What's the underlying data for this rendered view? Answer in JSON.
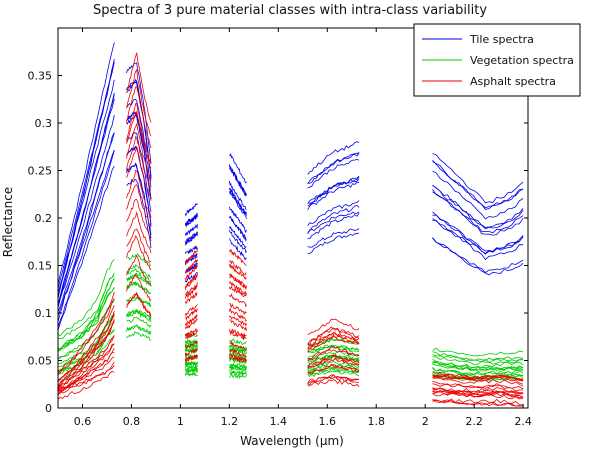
{
  "chart_data": {
    "type": "line",
    "title": "Spectra of 3 pure material classes with intra-class variability",
    "xlabel": "Wavelength (µm)",
    "ylabel": "Reflectance",
    "xlim": [
      0.5,
      2.42
    ],
    "ylim": [
      0,
      0.4
    ],
    "x_ticks": [
      0.6,
      0.8,
      1,
      1.2,
      1.4,
      1.6,
      1.8,
      2,
      2.2,
      2.4
    ],
    "x_tick_labels": [
      "0.6",
      "0.8",
      "1",
      "1.2",
      "1.4",
      "1.6",
      "1.8",
      "2",
      "2.2",
      "2.4"
    ],
    "y_ticks": [
      0,
      0.05,
      0.1,
      0.15,
      0.2,
      0.25,
      0.3,
      0.35
    ],
    "y_tick_labels": [
      "0",
      "0.05",
      "0.1",
      "0.15",
      "0.2",
      "0.25",
      "0.3",
      "0.35"
    ],
    "grid": false,
    "legend_position": "top-right",
    "bands": [
      [
        0.5,
        0.73
      ],
      [
        0.78,
        0.88
      ],
      [
        1.02,
        1.07
      ],
      [
        1.2,
        1.27
      ],
      [
        1.52,
        1.73
      ],
      [
        2.03,
        2.4
      ]
    ],
    "series": [
      {
        "name": "Tile spectra",
        "color": "#0000ee",
        "reference": [
          [
            0.5,
            0.12
          ],
          [
            0.6,
            0.22
          ],
          [
            0.73,
            0.36
          ],
          [
            0.78,
            0.33
          ],
          [
            0.82,
            0.34
          ],
          [
            0.85,
            0.3
          ],
          [
            0.88,
            0.24
          ],
          [
            1.02,
            0.19
          ],
          [
            1.07,
            0.2
          ],
          [
            1.2,
            0.25
          ],
          [
            1.27,
            0.22
          ],
          [
            1.52,
            0.23
          ],
          [
            1.62,
            0.25
          ],
          [
            1.73,
            0.26
          ],
          [
            2.03,
            0.25
          ],
          [
            2.12,
            0.23
          ],
          [
            2.25,
            0.2
          ],
          [
            2.35,
            0.21
          ],
          [
            2.4,
            0.22
          ]
        ],
        "count": 14,
        "scale_range": [
          0.72,
          1.07
        ]
      },
      {
        "name": "Vegetation spectra",
        "color": "#00cc00",
        "reference": [
          [
            0.5,
            0.055
          ],
          [
            0.6,
            0.07
          ],
          [
            0.66,
            0.085
          ],
          [
            0.7,
            0.11
          ],
          [
            0.73,
            0.12
          ],
          [
            0.78,
            0.12
          ],
          [
            0.82,
            0.125
          ],
          [
            0.85,
            0.12
          ],
          [
            0.88,
            0.115
          ],
          [
            1.02,
            0.058
          ],
          [
            1.07,
            0.058
          ],
          [
            1.2,
            0.055
          ],
          [
            1.27,
            0.052
          ],
          [
            1.52,
            0.052
          ],
          [
            1.62,
            0.058
          ],
          [
            1.73,
            0.054
          ],
          [
            2.03,
            0.048
          ],
          [
            2.2,
            0.042
          ],
          [
            2.3,
            0.043
          ],
          [
            2.4,
            0.044
          ]
        ],
        "count": 16,
        "scale_range": [
          0.65,
          1.25
        ]
      },
      {
        "name": "Asphalt spectra",
        "color": "#ee0000",
        "reference": [
          [
            0.5,
            0.02
          ],
          [
            0.6,
            0.04
          ],
          [
            0.66,
            0.055
          ],
          [
            0.7,
            0.065
          ],
          [
            0.73,
            0.08
          ],
          [
            0.78,
            0.22
          ],
          [
            0.82,
            0.25
          ],
          [
            0.85,
            0.22
          ],
          [
            0.88,
            0.2
          ],
          [
            1.02,
            0.1
          ],
          [
            1.07,
            0.11
          ],
          [
            1.2,
            0.11
          ],
          [
            1.27,
            0.1
          ],
          [
            1.52,
            0.05
          ],
          [
            1.62,
            0.062
          ],
          [
            1.73,
            0.055
          ],
          [
            2.03,
            0.025
          ],
          [
            2.2,
            0.022
          ],
          [
            2.3,
            0.024
          ],
          [
            2.4,
            0.02
          ]
        ],
        "count": 18,
        "scale_range": [
          0.45,
          1.5
        ]
      }
    ]
  }
}
